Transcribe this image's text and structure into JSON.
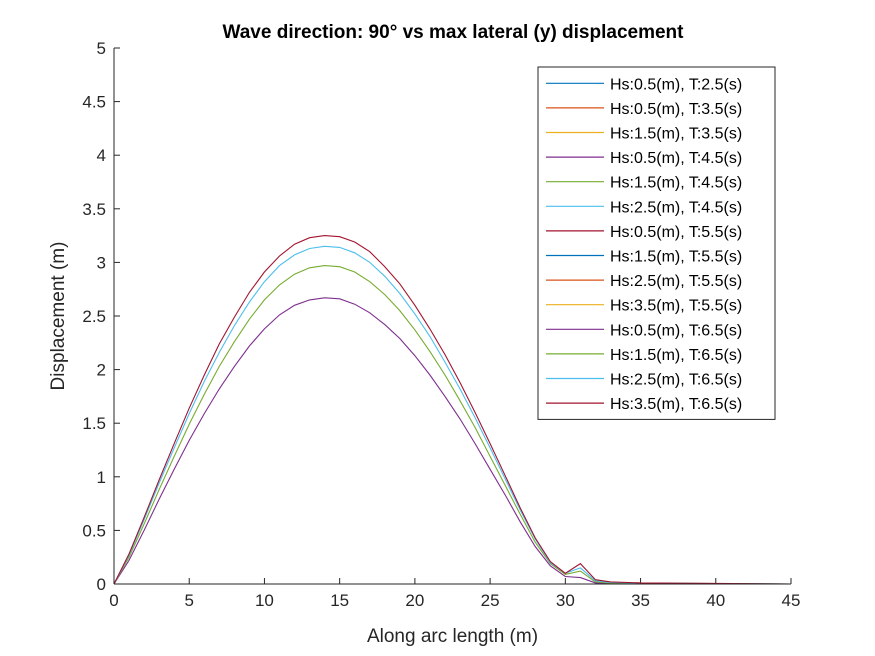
{
  "chart_data": {
    "type": "line",
    "title": "Wave direction: 90° vs max lateral (y) displacement",
    "xlabel": "Along arc length (m)",
    "ylabel": "Displacement (m)",
    "xlim": [
      0,
      45
    ],
    "ylim": [
      0,
      5
    ],
    "xticks": [
      "0",
      "5",
      "10",
      "15",
      "20",
      "25",
      "30",
      "35",
      "40",
      "45"
    ],
    "yticks": [
      "0",
      "0.5",
      "1",
      "1.5",
      "2",
      "2.5",
      "3",
      "3.5",
      "4",
      "4.5",
      "5"
    ],
    "grid": false,
    "legend_position": "top-right",
    "x": [
      0,
      1,
      2,
      3,
      4,
      5,
      6,
      7,
      8,
      9,
      10,
      11,
      12,
      13,
      14,
      15,
      16,
      17,
      18,
      19,
      20,
      21,
      22,
      23,
      24,
      25,
      26,
      27,
      28,
      29,
      30,
      31,
      32,
      33,
      35,
      40,
      45
    ],
    "series": [
      {
        "name": "Hs:0.5(m), T:2.5(s)",
        "color": "#0072BD",
        "values": [
          0,
          0,
          0,
          0,
          0,
          0,
          0,
          0,
          0,
          0,
          0,
          0,
          0,
          0,
          0,
          0,
          0,
          0,
          0,
          0,
          0,
          0,
          0,
          0,
          0,
          0,
          0,
          0,
          0,
          0,
          0,
          0,
          0,
          0,
          0,
          0,
          0
        ]
      },
      {
        "name": "Hs:0.5(m), T:3.5(s)",
        "color": "#D95319",
        "values": [
          0,
          0,
          0,
          0,
          0,
          0,
          0,
          0,
          0,
          0,
          0,
          0,
          0,
          0,
          0,
          0,
          0,
          0,
          0,
          0,
          0,
          0,
          0,
          0,
          0,
          0,
          0,
          0,
          0,
          0,
          0,
          0,
          0,
          0,
          0,
          0,
          0
        ]
      },
      {
        "name": "Hs:1.5(m), T:3.5(s)",
        "color": "#EDB120",
        "values": [
          0,
          0,
          0,
          0,
          0,
          0,
          0,
          0,
          0,
          0,
          0,
          0,
          0,
          0,
          0,
          0,
          0,
          0,
          0,
          0,
          0,
          0,
          0,
          0,
          0,
          0,
          0,
          0,
          0,
          0,
          0,
          0,
          0,
          0,
          0,
          0,
          0
        ]
      },
      {
        "name": "Hs:0.5(m), T:4.5(s)",
        "color": "#7E2F8E",
        "values": [
          0,
          0,
          0,
          0,
          0,
          0,
          0,
          0,
          0,
          0,
          0,
          0,
          0,
          0,
          0,
          0,
          0,
          0,
          0,
          0,
          0,
          0,
          0,
          0,
          0,
          0,
          0,
          0,
          0,
          0,
          0,
          0,
          0,
          0,
          0,
          0,
          0
        ]
      },
      {
        "name": "Hs:1.5(m), T:4.5(s)",
        "color": "#77AC30",
        "values": [
          0,
          0,
          0,
          0,
          0,
          0,
          0,
          0,
          0,
          0,
          0,
          0,
          0,
          0,
          0,
          0,
          0,
          0,
          0,
          0,
          0,
          0,
          0,
          0,
          0,
          0,
          0,
          0,
          0,
          0,
          0,
          0,
          0,
          0,
          0,
          0,
          0
        ]
      },
      {
        "name": "Hs:2.5(m), T:4.5(s)",
        "color": "#4DBEEE",
        "values": [
          0,
          0,
          0,
          0,
          0,
          0,
          0,
          0,
          0,
          0,
          0,
          0,
          0,
          0,
          0,
          0,
          0,
          0,
          0,
          0,
          0,
          0,
          0,
          0,
          0,
          0,
          0,
          0,
          0,
          0,
          0,
          0,
          0,
          0,
          0,
          0,
          0
        ]
      },
      {
        "name": "Hs:0.5(m), T:5.5(s)",
        "color": "#A2142F",
        "values": [
          0,
          0,
          0,
          0,
          0,
          0,
          0,
          0,
          0,
          0,
          0,
          0,
          0,
          0,
          0,
          0,
          0,
          0,
          0,
          0,
          0,
          0,
          0,
          0,
          0,
          0,
          0,
          0,
          0,
          0,
          0,
          0,
          0,
          0,
          0,
          0,
          0
        ]
      },
      {
        "name": "Hs:1.5(m), T:5.5(s)",
        "color": "#0072BD",
        "values": [
          0,
          0,
          0,
          0,
          0,
          0,
          0,
          0,
          0,
          0,
          0,
          0,
          0,
          0,
          0,
          0,
          0,
          0,
          0,
          0,
          0,
          0,
          0,
          0,
          0,
          0,
          0,
          0,
          0,
          0,
          0,
          0,
          0,
          0,
          0,
          0,
          0
        ]
      },
      {
        "name": "Hs:2.5(m), T:5.5(s)",
        "color": "#D95319",
        "values": [
          0,
          0,
          0,
          0,
          0,
          0,
          0,
          0,
          0,
          0,
          0,
          0,
          0,
          0,
          0,
          0,
          0,
          0,
          0,
          0,
          0,
          0,
          0,
          0,
          0,
          0,
          0,
          0,
          0,
          0,
          0,
          0,
          0,
          0,
          0,
          0,
          0
        ]
      },
      {
        "name": "Hs:3.5(m), T:5.5(s)",
        "color": "#EDB120",
        "values": [
          0,
          0,
          0,
          0,
          0,
          0,
          0,
          0,
          0,
          0,
          0,
          0,
          0,
          0,
          0,
          0,
          0,
          0,
          0,
          0,
          0,
          0,
          0,
          0,
          0,
          0,
          0,
          0,
          0,
          0,
          0,
          0,
          0,
          0,
          0,
          0,
          0
        ]
      },
      {
        "name": "Hs:0.5(m), T:6.5(s)",
        "color": "#7E2F8E",
        "values": [
          0,
          0.22,
          0.5,
          0.79,
          1.07,
          1.34,
          1.59,
          1.82,
          2.03,
          2.22,
          2.38,
          2.51,
          2.6,
          2.65,
          2.67,
          2.66,
          2.61,
          2.53,
          2.42,
          2.29,
          2.13,
          1.95,
          1.75,
          1.54,
          1.31,
          1.07,
          0.83,
          0.58,
          0.35,
          0.17,
          0.07,
          0.06,
          0.01,
          0.01,
          0.005,
          0.003,
          0
        ]
      },
      {
        "name": "Hs:1.5(m), T:6.5(s)",
        "color": "#77AC30",
        "values": [
          0,
          0.25,
          0.56,
          0.88,
          1.19,
          1.49,
          1.77,
          2.03,
          2.26,
          2.47,
          2.65,
          2.79,
          2.89,
          2.95,
          2.97,
          2.96,
          2.91,
          2.82,
          2.7,
          2.55,
          2.37,
          2.17,
          1.95,
          1.71,
          1.46,
          1.19,
          0.92,
          0.65,
          0.39,
          0.19,
          0.09,
          0.12,
          0.02,
          0.01,
          0.007,
          0.004,
          0
        ]
      },
      {
        "name": "Hs:2.5(m), T:6.5(s)",
        "color": "#4DBEEE",
        "values": [
          0,
          0.27,
          0.6,
          0.94,
          1.27,
          1.59,
          1.89,
          2.16,
          2.41,
          2.63,
          2.82,
          2.97,
          3.07,
          3.13,
          3.15,
          3.14,
          3.09,
          3.0,
          2.87,
          2.71,
          2.52,
          2.31,
          2.07,
          1.82,
          1.55,
          1.27,
          0.98,
          0.69,
          0.42,
          0.2,
          0.1,
          0.15,
          0.03,
          0.015,
          0.008,
          0.005,
          0
        ]
      },
      {
        "name": "Hs:3.5(m), T:6.5(s)",
        "color": "#A2142F",
        "values": [
          0,
          0.28,
          0.62,
          0.97,
          1.31,
          1.64,
          1.95,
          2.24,
          2.49,
          2.72,
          2.91,
          3.06,
          3.17,
          3.23,
          3.25,
          3.24,
          3.19,
          3.1,
          2.96,
          2.8,
          2.6,
          2.38,
          2.14,
          1.88,
          1.6,
          1.31,
          1.01,
          0.71,
          0.43,
          0.21,
          0.1,
          0.19,
          0.04,
          0.02,
          0.01,
          0.006,
          0
        ]
      }
    ]
  }
}
